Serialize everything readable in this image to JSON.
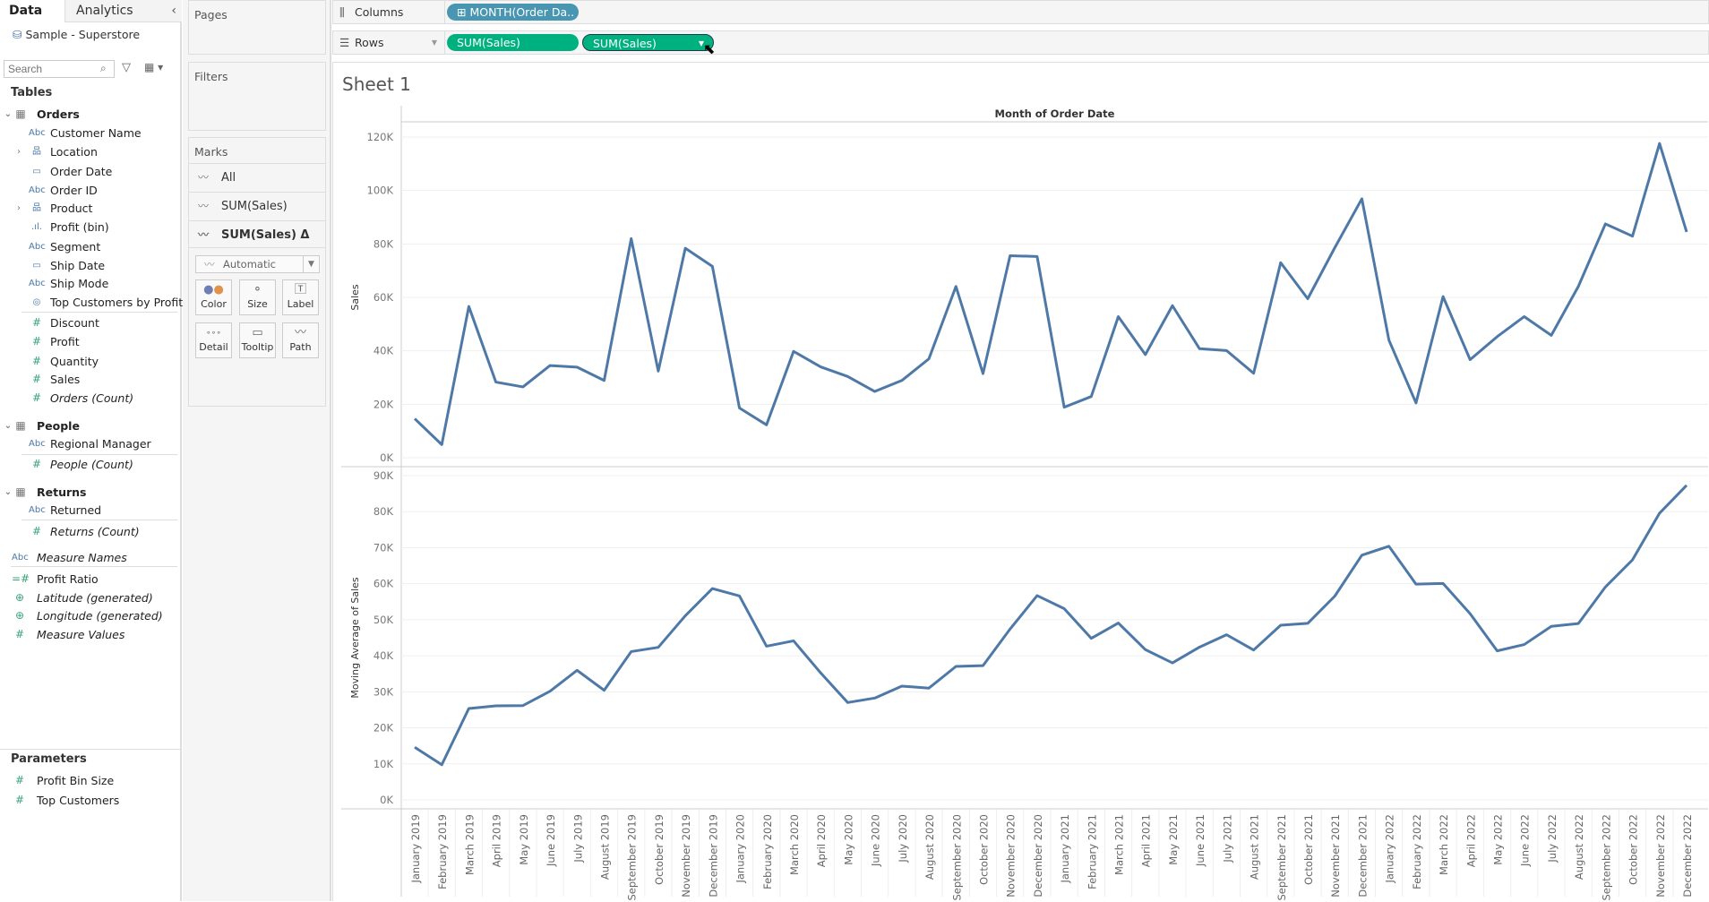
{
  "left_pane": {
    "tabs": [
      "Data",
      "Analytics"
    ],
    "datasource": "Sample - Superstore",
    "search_placeholder": "Search",
    "tables_heading": "Tables",
    "parameters_heading": "Parameters",
    "items": [
      {
        "label": "Orders",
        "icon": "table",
        "kind": "table"
      },
      {
        "label": "Customer Name",
        "icon": "abc"
      },
      {
        "label": "Location",
        "icon": "hierarchy",
        "chevron": true
      },
      {
        "label": "Order Date",
        "icon": "calendar"
      },
      {
        "label": "Order ID",
        "icon": "abc"
      },
      {
        "label": "Product",
        "icon": "hierarchy",
        "chevron": true
      },
      {
        "label": "Profit (bin)",
        "icon": "bin"
      },
      {
        "label": "Segment",
        "icon": "abc"
      },
      {
        "label": "Ship Date",
        "icon": "calendar"
      },
      {
        "label": "Ship Mode",
        "icon": "abc"
      },
      {
        "label": "Top Customers by Profit",
        "icon": "set"
      },
      {
        "label": "Discount",
        "icon": "measure"
      },
      {
        "label": "Profit",
        "icon": "measure"
      },
      {
        "label": "Quantity",
        "icon": "measure"
      },
      {
        "label": "Sales",
        "icon": "measure"
      },
      {
        "label": "Orders (Count)",
        "icon": "measure",
        "italic": true
      },
      {
        "label": "People",
        "icon": "table",
        "kind": "table"
      },
      {
        "label": "Regional Manager",
        "icon": "abc"
      },
      {
        "label": "People (Count)",
        "icon": "measure",
        "italic": true
      },
      {
        "label": "Returns",
        "icon": "table",
        "kind": "table"
      },
      {
        "label": "Returned",
        "icon": "abc"
      },
      {
        "label": "Returns (Count)",
        "icon": "measure",
        "italic": true
      },
      {
        "label": "Measure Names",
        "icon": "abc",
        "italic": true,
        "kind": "top"
      },
      {
        "label": "Profit Ratio",
        "icon": "calc",
        "kind": "top"
      },
      {
        "label": "Latitude (generated)",
        "icon": "globe",
        "italic": true,
        "kind": "top"
      },
      {
        "label": "Longitude (generated)",
        "icon": "globe",
        "italic": true,
        "kind": "top"
      },
      {
        "label": "Measure Values",
        "icon": "measure",
        "italic": true,
        "kind": "top"
      },
      {
        "label": "Profit Bin Size",
        "icon": "measure",
        "kind": "top"
      },
      {
        "label": "Top Customers",
        "icon": "measure",
        "kind": "top"
      }
    ]
  },
  "cards": {
    "pages": "Pages",
    "filters": "Filters",
    "marks": "Marks",
    "marks_rows": [
      "All",
      "SUM(Sales)",
      "SUM(Sales) Δ"
    ],
    "mark_type": "Automatic",
    "buttons": [
      "Color",
      "Size",
      "Label",
      "Detail",
      "Tooltip",
      "Path"
    ]
  },
  "shelves": {
    "columns_label": "Columns",
    "rows_label": "Rows",
    "columns_pill": "MONTH(Order Da..",
    "rows_pills": [
      "SUM(Sales)",
      "SUM(Sales)"
    ]
  },
  "colors": {
    "line": "#4e79a7",
    "pill_blue": "#4996b2",
    "pill_green": "#00b180"
  },
  "sheet": {
    "title": "Sheet 1"
  },
  "chart_data": {
    "type": "line",
    "title": "Sheet 1",
    "header": "Month of Order Date",
    "categories": [
      "January 2019",
      "February 2019",
      "March 2019",
      "April 2019",
      "May 2019",
      "June 2019",
      "July 2019",
      "August 2019",
      "September 2019",
      "October 2019",
      "November 2019",
      "December 2019",
      "January 2020",
      "February 2020",
      "March 2020",
      "April 2020",
      "May 2020",
      "June 2020",
      "July 2020",
      "August 2020",
      "September 2020",
      "October 2020",
      "November 2020",
      "December 2020",
      "January 2021",
      "February 2021",
      "March 2021",
      "April 2021",
      "May 2021",
      "June 2021",
      "July 2021",
      "August 2021",
      "September 2021",
      "October 2021",
      "November 2021",
      "December 2021",
      "January 2022",
      "February 2022",
      "March 2022",
      "April 2022",
      "May 2022",
      "June 2022",
      "July 2022",
      "August 2022",
      "September 2022",
      "October 2022",
      "November 2022",
      "December 2022"
    ],
    "panes": [
      {
        "ylabel": "Sales",
        "ylim": [
          0,
          120000
        ],
        "ticks": [
          0,
          20000,
          40000,
          60000,
          80000,
          100000,
          120000
        ],
        "tick_labels": [
          "0K",
          "20K",
          "40K",
          "60K",
          "80K",
          "100K",
          "120K"
        ],
        "values": [
          14600,
          4900,
          56600,
          28300,
          26500,
          34500,
          33900,
          28900,
          82000,
          32400,
          78400,
          71600,
          18600,
          12300,
          39800,
          34000,
          30400,
          24800,
          28900,
          37000,
          64100,
          31500,
          75600,
          75300,
          18900,
          22900,
          52800,
          38600,
          56900,
          40800,
          40100,
          31600,
          73000,
          59500,
          78600,
          96900,
          44000,
          20500,
          60300,
          36700,
          45300,
          52800,
          45800,
          64100,
          87500,
          82900,
          117600,
          84500
        ]
      },
      {
        "ylabel": "Moving Average of Sales",
        "ylim": [
          0,
          90000
        ],
        "ticks": [
          0,
          10000,
          20000,
          30000,
          40000,
          50000,
          60000,
          70000,
          80000,
          90000
        ],
        "tick_labels": [
          "0K",
          "10K",
          "20K",
          "30K",
          "40K",
          "50K",
          "60K",
          "70K",
          "80K",
          "90K"
        ],
        "values": [
          14600,
          9750,
          25370,
          26100,
          26180,
          30160,
          35960,
          30420,
          41160,
          42340,
          51120,
          58660,
          56600,
          42660,
          44140,
          35260,
          27020,
          28260,
          31580,
          31020,
          37040,
          37260,
          47420,
          56700,
          53080,
          44840,
          49100,
          41700,
          38020,
          42400,
          45840,
          41600,
          48480,
          49000,
          56560,
          67920,
          70400,
          59900,
          60060,
          51680,
          41360,
          43120,
          48180,
          48940,
          59100,
          66620,
          79580,
          87320
        ]
      }
    ]
  }
}
